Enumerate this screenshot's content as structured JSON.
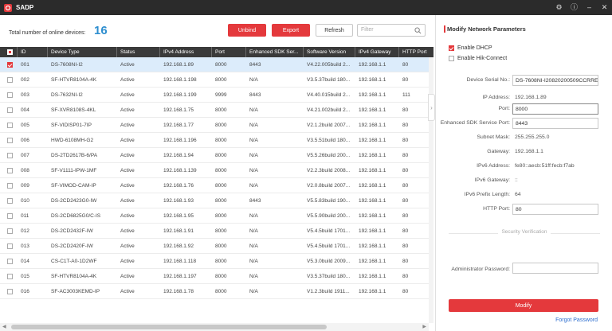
{
  "app": {
    "title": "SADP"
  },
  "toolbar": {
    "total_label": "Total number of online devices:",
    "total_count": "16",
    "unbind_label": "Unbind",
    "export_label": "Export",
    "refresh_label": "Refresh",
    "filter_placeholder": "Filter"
  },
  "table": {
    "columns": [
      "ID",
      "Device Type",
      "Status",
      "IPv4 Address",
      "Port",
      "Enhanced SDK Ser...",
      "Software Version",
      "IPv4 Gateway",
      "HTTP Port"
    ],
    "rows": [
      {
        "id": "001",
        "type": "DS-7608NI-I2",
        "status": "Active",
        "ip": "192.168.1.89",
        "port": "8000",
        "sdk": "8443",
        "sw": "V4.22.005build 2...",
        "gw": "192.168.1.1",
        "http": "80",
        "selected": true
      },
      {
        "id": "002",
        "type": "SF-HTVR8104A-4K",
        "status": "Active",
        "ip": "192.168.1.198",
        "port": "8000",
        "sdk": "N/A",
        "sw": "V3.5.37build 180...",
        "gw": "192.168.1.1",
        "http": "80"
      },
      {
        "id": "003",
        "type": "DS-7632NI-I2",
        "status": "Active",
        "ip": "192.168.1.199",
        "port": "9999",
        "sdk": "8443",
        "sw": "V4.40.015build 2...",
        "gw": "192.168.1.1",
        "http": "111"
      },
      {
        "id": "004",
        "type": "SF-XVR8108S-4KL",
        "status": "Active",
        "ip": "192.168.1.75",
        "port": "8000",
        "sdk": "N/A",
        "sw": "V4.21.002build 2...",
        "gw": "192.168.1.1",
        "http": "80"
      },
      {
        "id": "005",
        "type": "SF-VIDISP01-7IP",
        "status": "Active",
        "ip": "192.168.1.77",
        "port": "8000",
        "sdk": "N/A",
        "sw": "V2.1.2build 2007...",
        "gw": "192.168.1.1",
        "http": "80"
      },
      {
        "id": "006",
        "type": "HWD-6108MH-G2",
        "status": "Active",
        "ip": "192.168.1.196",
        "port": "8000",
        "sdk": "N/A",
        "sw": "V3.5.51build 180...",
        "gw": "192.168.1.1",
        "http": "80"
      },
      {
        "id": "007",
        "type": "DS-2TD2617B-6/PA",
        "status": "Active",
        "ip": "192.168.1.94",
        "port": "8000",
        "sdk": "N/A",
        "sw": "V5.5.26build 200...",
        "gw": "192.168.1.1",
        "http": "80"
      },
      {
        "id": "008",
        "type": "SF-V1111-IPW-1MF",
        "status": "Active",
        "ip": "192.168.1.139",
        "port": "8000",
        "sdk": "N/A",
        "sw": "V2.2.3build 2008...",
        "gw": "192.168.1.1",
        "http": "80"
      },
      {
        "id": "009",
        "type": "SF-VIMOD-CAM-IP",
        "status": "Active",
        "ip": "192.168.1.76",
        "port": "8000",
        "sdk": "N/A",
        "sw": "V2.0.8build 2007...",
        "gw": "192.168.1.1",
        "http": "80"
      },
      {
        "id": "010",
        "type": "DS-2CD2423G0-IW",
        "status": "Active",
        "ip": "192.168.1.93",
        "port": "8000",
        "sdk": "8443",
        "sw": "V5.5.83build 190...",
        "gw": "192.168.1.1",
        "http": "80"
      },
      {
        "id": "011",
        "type": "DS-2CD6825G0/C-IS",
        "status": "Active",
        "ip": "192.168.1.95",
        "port": "8000",
        "sdk": "N/A",
        "sw": "V5.5.90build 200...",
        "gw": "192.168.1.1",
        "http": "80"
      },
      {
        "id": "012",
        "type": "DS-2CD2432F-IW",
        "status": "Active",
        "ip": "192.168.1.91",
        "port": "8000",
        "sdk": "N/A",
        "sw": "V5.4.5build 1701...",
        "gw": "192.168.1.1",
        "http": "80"
      },
      {
        "id": "013",
        "type": "DS-2CD2420F-IW",
        "status": "Active",
        "ip": "192.168.1.92",
        "port": "8000",
        "sdk": "N/A",
        "sw": "V5.4.5build 1701...",
        "gw": "192.168.1.1",
        "http": "80"
      },
      {
        "id": "014",
        "type": "CS-C1T-A0-1D2WF",
        "status": "Active",
        "ip": "192.168.1.118",
        "port": "8000",
        "sdk": "N/A",
        "sw": "V5.3.0build 2009...",
        "gw": "192.168.1.1",
        "http": "80"
      },
      {
        "id": "015",
        "type": "SF-HTVR8104A-4K",
        "status": "Active",
        "ip": "192.168.1.197",
        "port": "8000",
        "sdk": "N/A",
        "sw": "V3.5.37build 180...",
        "gw": "192.168.1.1",
        "http": "80"
      },
      {
        "id": "016",
        "type": "SF-AC3003KEMD-IP",
        "status": "Active",
        "ip": "192.168.1.78",
        "port": "8000",
        "sdk": "N/A",
        "sw": "V1.2.3build 1911...",
        "gw": "192.168.1.1",
        "http": "80"
      }
    ]
  },
  "panel": {
    "title": "Modify Network Parameters",
    "enable_dhcp": "Enable DHCP",
    "enable_hik": "Enable Hik-Connect",
    "fields": [
      {
        "label": "Device Serial No.:",
        "value": "DS-7608NI-I20820200509CCRRE4",
        "input": true
      },
      {
        "label": "IP Address:",
        "value": "192.168.1.89",
        "input": false
      },
      {
        "label": "Port:",
        "value": "8000",
        "input": true,
        "focus": true
      },
      {
        "label": "Enhanced SDK Service Port:",
        "value": "8443",
        "input": true
      },
      {
        "label": "Subnet Mask:",
        "value": "255.255.255.0",
        "input": false
      },
      {
        "label": "Gateway:",
        "value": "192.168.1.1",
        "input": false
      },
      {
        "label": "IPv6 Address:",
        "value": "fe80::aecb:51ff:fecb:f7ab",
        "input": false
      },
      {
        "label": "IPv6 Gateway:",
        "value": "::",
        "input": false
      },
      {
        "label": "IPv6 Prefix Length:",
        "value": "64",
        "input": false
      },
      {
        "label": "HTTP Port:",
        "value": "80",
        "input": true
      }
    ],
    "security_label": "Security Verification",
    "admin_password_label": "Administrator Password:",
    "modify_label": "Modify",
    "forgot_label": "Forgot Password"
  }
}
